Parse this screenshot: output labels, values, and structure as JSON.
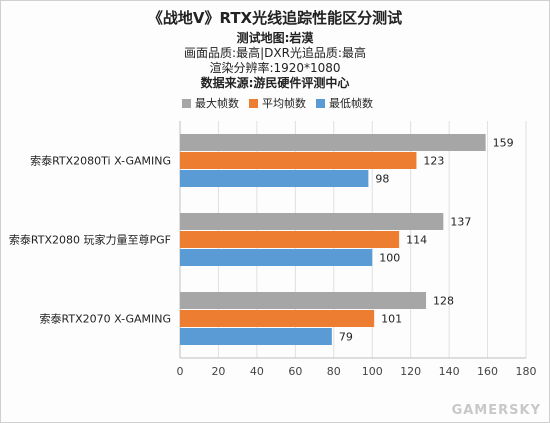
{
  "title": "《战地V》RTX光线追踪性能区分测试",
  "subtitles": [
    {
      "text": "测试地图:岩漠",
      "bold": true
    },
    {
      "text": "画面品质:最高|DXR光追品质:最高",
      "bold": false
    },
    {
      "text": "渲染分辨率:1920*1080",
      "bold": false
    },
    {
      "text": "数据来源:游民硬件评测中心",
      "bold": true
    }
  ],
  "watermark": "GAMERSKY",
  "chart_data": {
    "type": "bar",
    "orientation": "horizontal",
    "categories": [
      "索泰RTX2080Ti X-GAMING",
      "索泰RTX2080 玩家力量至尊PGF",
      "索泰RTX2070 X-GAMING"
    ],
    "series": [
      {
        "name": "最大帧数",
        "color": "#a6a6a6",
        "values": [
          159,
          137,
          128
        ]
      },
      {
        "name": "平均帧数",
        "color": "#ed7d31",
        "values": [
          123,
          114,
          101
        ]
      },
      {
        "name": "最低帧数",
        "color": "#5b9bd5",
        "values": [
          98,
          100,
          79
        ]
      }
    ],
    "xlim": [
      0,
      180
    ],
    "xticks": [
      0,
      20,
      40,
      60,
      80,
      100,
      120,
      140,
      160,
      180
    ],
    "grid": true,
    "legend_position": "top-left"
  }
}
